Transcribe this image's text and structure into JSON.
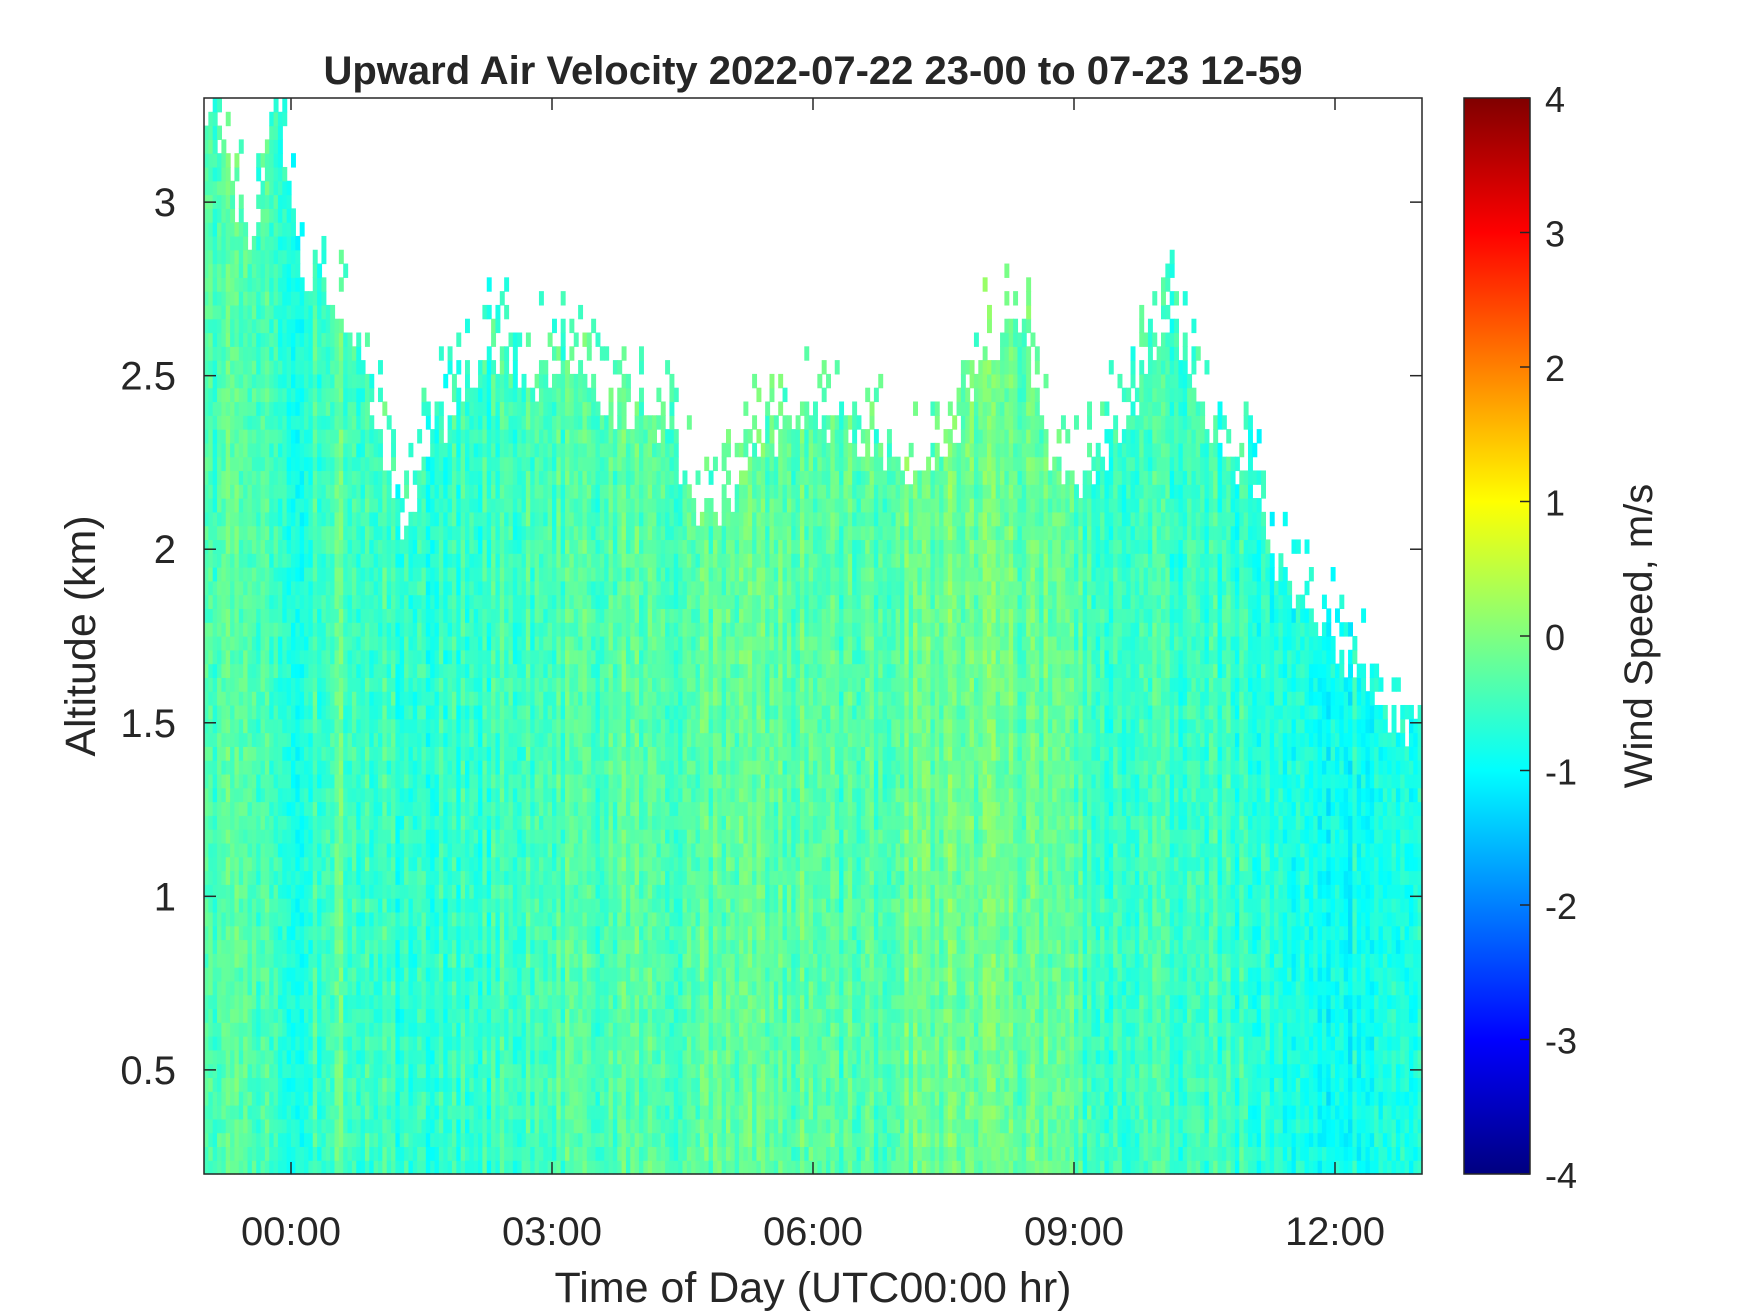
{
  "chart_data": {
    "type": "heatmap",
    "title": "Upward Air Velocity 2022-07-22 23-00 to 07-23 12-59",
    "xlabel": "Time of Day (UTC00:00 hr)",
    "ylabel": "Altitude (km)",
    "colorbar_label": "Wind Speed, m/s",
    "colormap": "jet",
    "xlim_hours": [
      -1,
      13
    ],
    "ylim": [
      0.2,
      3.3
    ],
    "clim": [
      -4,
      4
    ],
    "x_ticks": [
      {
        "value": 0,
        "label": "00:00"
      },
      {
        "value": 3,
        "label": "03:00"
      },
      {
        "value": 6,
        "label": "06:00"
      },
      {
        "value": 9,
        "label": "09:00"
      },
      {
        "value": 12,
        "label": "12:00"
      }
    ],
    "y_ticks": [
      {
        "value": 0.5,
        "label": "0.5"
      },
      {
        "value": 1,
        "label": "1"
      },
      {
        "value": 1.5,
        "label": "1.5"
      },
      {
        "value": 2,
        "label": "2"
      },
      {
        "value": 2.5,
        "label": "2.5"
      },
      {
        "value": 3,
        "label": "3"
      }
    ],
    "colorbar_ticks": [
      {
        "value": 4,
        "label": "4"
      },
      {
        "value": 3,
        "label": "3"
      },
      {
        "value": 2,
        "label": "2"
      },
      {
        "value": 1,
        "label": "1"
      },
      {
        "value": 0,
        "label": "0"
      },
      {
        "value": -1,
        "label": "-1"
      },
      {
        "value": -2,
        "label": "-2"
      },
      {
        "value": -3,
        "label": "-3"
      },
      {
        "value": -4,
        "label": "-4"
      }
    ],
    "data_top_altitude_km": {
      "hours": [
        -1,
        -0.7,
        -0.4,
        -0.2,
        0.1,
        0.4,
        0.6,
        0.8,
        1.1,
        1.3,
        1.6,
        2.0,
        2.4,
        2.8,
        3.2,
        3.6,
        4.0,
        4.4,
        4.7,
        4.9,
        5.3,
        5.8,
        6.3,
        6.8,
        7.2,
        7.6,
        8.0,
        8.4,
        8.6,
        8.9,
        9.2,
        9.5,
        9.8,
        10.1,
        10.4,
        10.7,
        11.0,
        11.3,
        11.6,
        11.9,
        12.2,
        12.5,
        12.7,
        13.0
      ],
      "top_km": [
        3.3,
        3.1,
        2.85,
        3.3,
        2.85,
        2.75,
        2.65,
        2.6,
        2.25,
        2.05,
        2.35,
        2.45,
        2.6,
        2.5,
        2.55,
        2.45,
        2.4,
        2.3,
        2.1,
        2.1,
        2.3,
        2.4,
        2.4,
        2.3,
        2.2,
        2.3,
        2.6,
        2.7,
        2.4,
        2.2,
        2.2,
        2.35,
        2.5,
        2.7,
        2.5,
        2.3,
        2.2,
        2.0,
        1.85,
        1.75,
        1.7,
        1.55,
        1.5,
        1.55
      ]
    },
    "mean_velocity_ms": {
      "hours": [
        -1,
        -0.5,
        0.0,
        0.5,
        1.0,
        1.5,
        2.0,
        2.5,
        3.0,
        3.5,
        4.0,
        4.5,
        5.0,
        5.5,
        6.0,
        6.5,
        7.0,
        7.5,
        8.0,
        8.5,
        9.0,
        9.5,
        10.0,
        10.5,
        11.0,
        11.5,
        12.0,
        12.5,
        13.0
      ],
      "values": [
        -0.6,
        -0.2,
        -0.8,
        -0.3,
        -0.5,
        -0.7,
        -0.6,
        -0.5,
        -0.4,
        -0.4,
        -0.3,
        -0.4,
        -0.3,
        -0.3,
        -0.3,
        -0.4,
        -0.2,
        -0.1,
        -0.2,
        -0.2,
        -0.4,
        -0.6,
        -0.5,
        -0.5,
        -0.6,
        -0.8,
        -0.9,
        -0.8,
        -0.7
      ]
    }
  }
}
